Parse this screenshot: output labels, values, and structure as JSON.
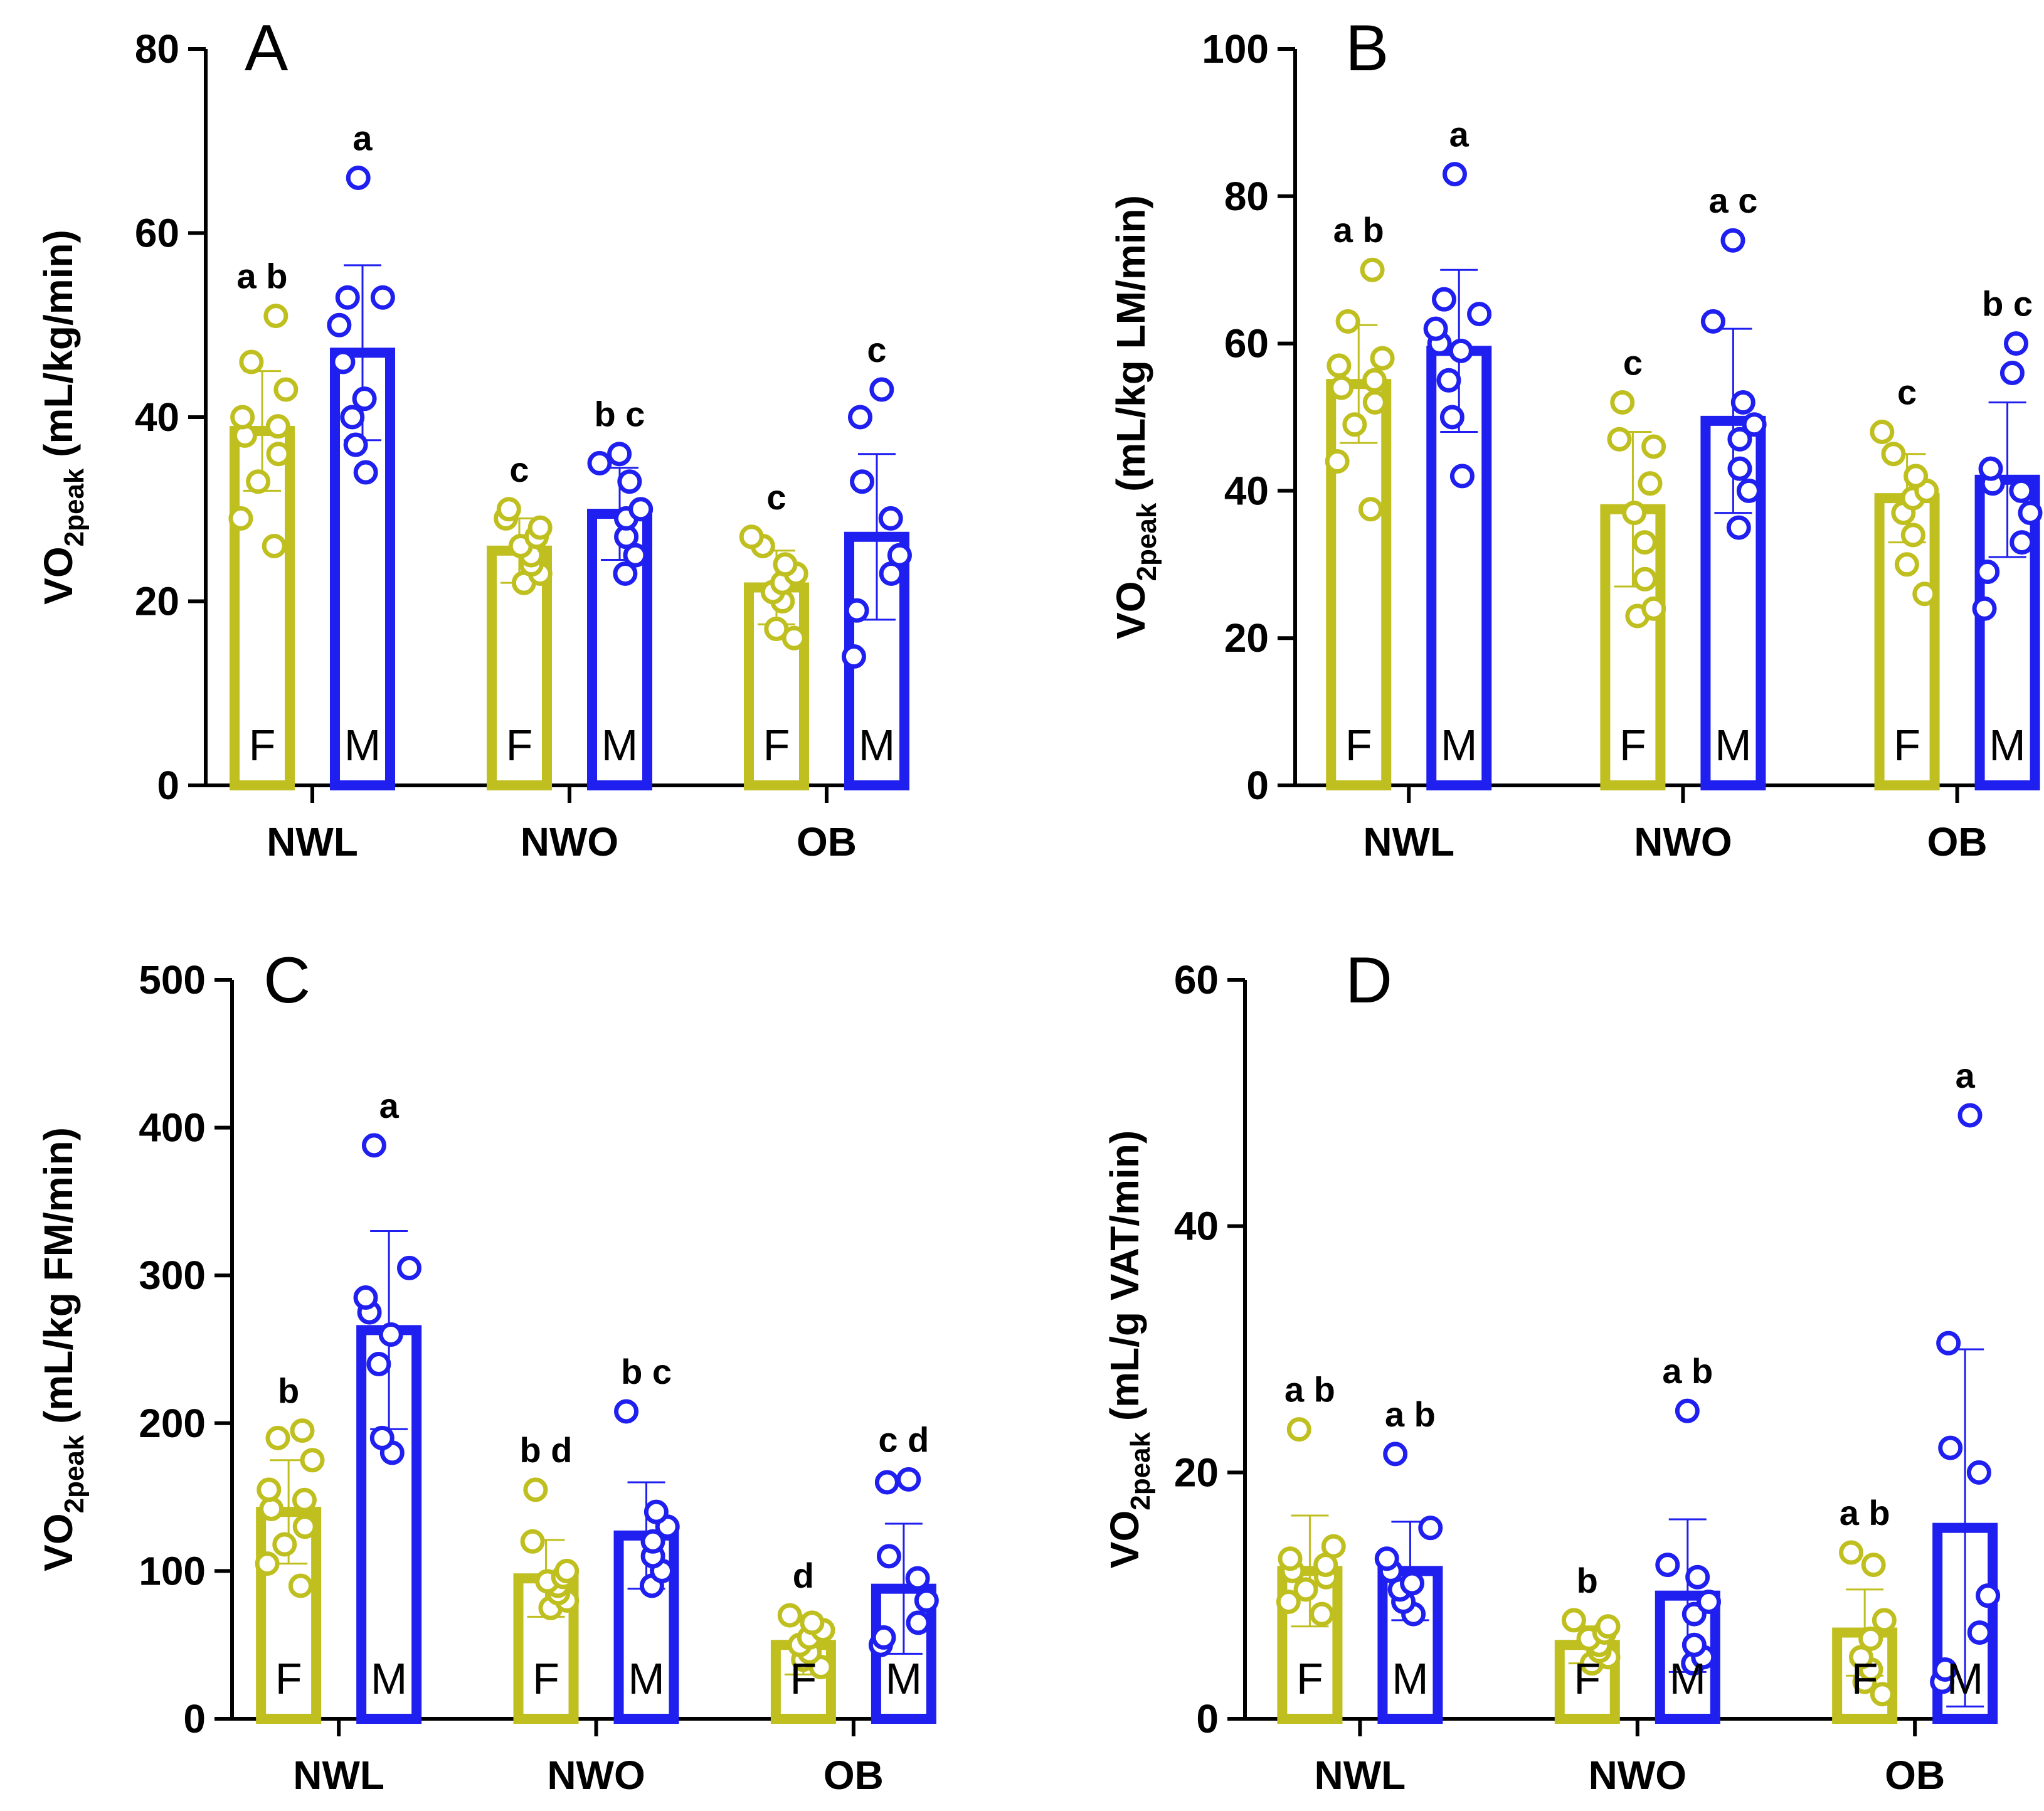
{
  "colors": {
    "female": "#BFBF1F",
    "male": "#1F1FF0",
    "axis": "#000000"
  },
  "chart_data": [
    {
      "type": "bar",
      "panel": "A",
      "ylabel_main": "VO",
      "ylabel_sub": "2peak",
      "ylabel_unit": " (mL/kg/min)",
      "ylim": [
        0,
        80
      ],
      "yticks": [
        0,
        20,
        40,
        60,
        80
      ],
      "categories": [
        "NWL",
        "NWO",
        "OB"
      ],
      "series": [
        {
          "name": "F",
          "values": [
            38.5,
            25.5,
            21.5
          ],
          "sd": [
            6.5,
            3.5,
            4
          ],
          "letters": [
            "a b",
            "c",
            "c"
          ],
          "points": [
            [
              26,
              29,
              33,
              36,
              38,
              39,
              40,
              43,
              46,
              51
            ],
            [
              22,
              23,
              24,
              25,
              26,
              27,
              28,
              29,
              30
            ],
            [
              16,
              17,
              20,
              21,
              22,
              23,
              24,
              26,
              27
            ]
          ]
        },
        {
          "name": "M",
          "values": [
            47,
            29.5,
            27
          ],
          "sd": [
            9.5,
            5,
            9
          ],
          "letters": [
            "a",
            "b c",
            "c"
          ],
          "points": [
            [
              34,
              37,
              40,
              42,
              46,
              50,
              53,
              53,
              66
            ],
            [
              23,
              25,
              27,
              29,
              30,
              33,
              35,
              36
            ],
            [
              14,
              19,
              23,
              25,
              29,
              33,
              40,
              43
            ]
          ]
        }
      ]
    },
    {
      "type": "bar",
      "panel": "B",
      "ylabel_main": "VO",
      "ylabel_sub": "2peak",
      "ylabel_unit": " (mL/kg LM/min)",
      "ylim": [
        0,
        100
      ],
      "yticks": [
        0,
        20,
        40,
        60,
        80,
        100
      ],
      "categories": [
        "NWL",
        "NWO",
        "OB"
      ],
      "series": [
        {
          "name": "F",
          "values": [
            54.5,
            37.5,
            39
          ],
          "sd": [
            8,
            10.5,
            6
          ],
          "letters": [
            "a b",
            "c",
            "c"
          ],
          "points": [
            [
              37.5,
              44,
              49,
              52,
              54,
              55,
              57,
              58,
              63,
              70
            ],
            [
              23,
              24,
              28,
              33,
              37,
              41,
              46,
              47,
              52
            ],
            [
              26,
              30,
              34,
              37,
              39,
              40,
              42,
              45,
              48
            ]
          ]
        },
        {
          "name": "M",
          "values": [
            59,
            49.5,
            41.5
          ],
          "sd": [
            11,
            12.5,
            10.5
          ],
          "letters": [
            "a",
            "a c",
            "b c"
          ],
          "points": [
            [
              42,
              50,
              55,
              59,
              60,
              62,
              64,
              66,
              83
            ],
            [
              35,
              40,
              43,
              47,
              49,
              52,
              63,
              74
            ],
            [
              24,
              29,
              33,
              37,
              40,
              41,
              43,
              56,
              60
            ]
          ]
        }
      ]
    },
    {
      "type": "bar",
      "panel": "C",
      "ylabel_main": "VO",
      "ylabel_sub": "2peak",
      "ylabel_unit": " (mL/kg FM/min)",
      "ylim": [
        0,
        500
      ],
      "yticks": [
        0,
        100,
        200,
        300,
        400,
        500
      ],
      "categories": [
        "NWL",
        "NWO",
        "OB"
      ],
      "series": [
        {
          "name": "F",
          "values": [
            140,
            95,
            50
          ],
          "sd": [
            35,
            26,
            20
          ],
          "letters": [
            "b",
            "b d",
            "d"
          ],
          "points": [
            [
              90,
              105,
              118,
              130,
              142,
              148,
              155,
              175,
              190,
              195
            ],
            [
              75,
              80,
              85,
              90,
              93,
              96,
              100,
              120,
              155
            ],
            [
              35,
              40,
              45,
              50,
              55,
              60,
              65,
              70
            ]
          ]
        },
        {
          "name": "M",
          "values": [
            263,
            124,
            88
          ],
          "sd": [
            67,
            36,
            44
          ],
          "letters": [
            "a",
            "b c",
            "c d"
          ],
          "points": [
            [
              180,
              190,
              240,
              260,
              275,
              285,
              305,
              388
            ],
            [
              90,
              100,
              110,
              120,
              130,
              140,
              208
            ],
            [
              50,
              55,
              65,
              80,
              95,
              110,
              160,
              162
            ]
          ]
        }
      ]
    },
    {
      "type": "bar",
      "panel": "D",
      "ylabel_main": "VO",
      "ylabel_sub": "2peak",
      "ylabel_unit": " (mL/g VAT/min)",
      "ylim": [
        0,
        60
      ],
      "yticks": [
        0,
        20,
        40,
        60
      ],
      "categories": [
        "NWL",
        "NWO",
        "OB"
      ],
      "series": [
        {
          "name": "F",
          "values": [
            12,
            6,
            7
          ],
          "sd": [
            4.5,
            1.5,
            3.5
          ],
          "letters": [
            "a b",
            "b",
            "a b"
          ],
          "points": [
            [
              8.5,
              9.5,
              10.5,
              11.5,
              12,
              12.5,
              13,
              14,
              23.5
            ],
            [
              4.5,
              5,
              5.5,
              6,
              6.5,
              7,
              7.5,
              8
            ],
            [
              2,
              3,
              4,
              5,
              6.5,
              8,
              12.5,
              13.5
            ]
          ]
        },
        {
          "name": "M",
          "values": [
            12,
            10,
            15.5
          ],
          "sd": [
            4,
            6.2,
            14.5
          ],
          "letters": [
            "a b",
            "a b",
            "a"
          ],
          "points": [
            [
              8.5,
              9.5,
              10.5,
              11,
              12,
              13,
              15.5,
              21.5
            ],
            [
              4.5,
              5,
              6,
              8.5,
              9.5,
              11.5,
              12.5,
              25
            ],
            [
              3,
              4,
              7,
              10,
              20,
              22,
              30.5,
              49
            ]
          ]
        }
      ]
    }
  ]
}
